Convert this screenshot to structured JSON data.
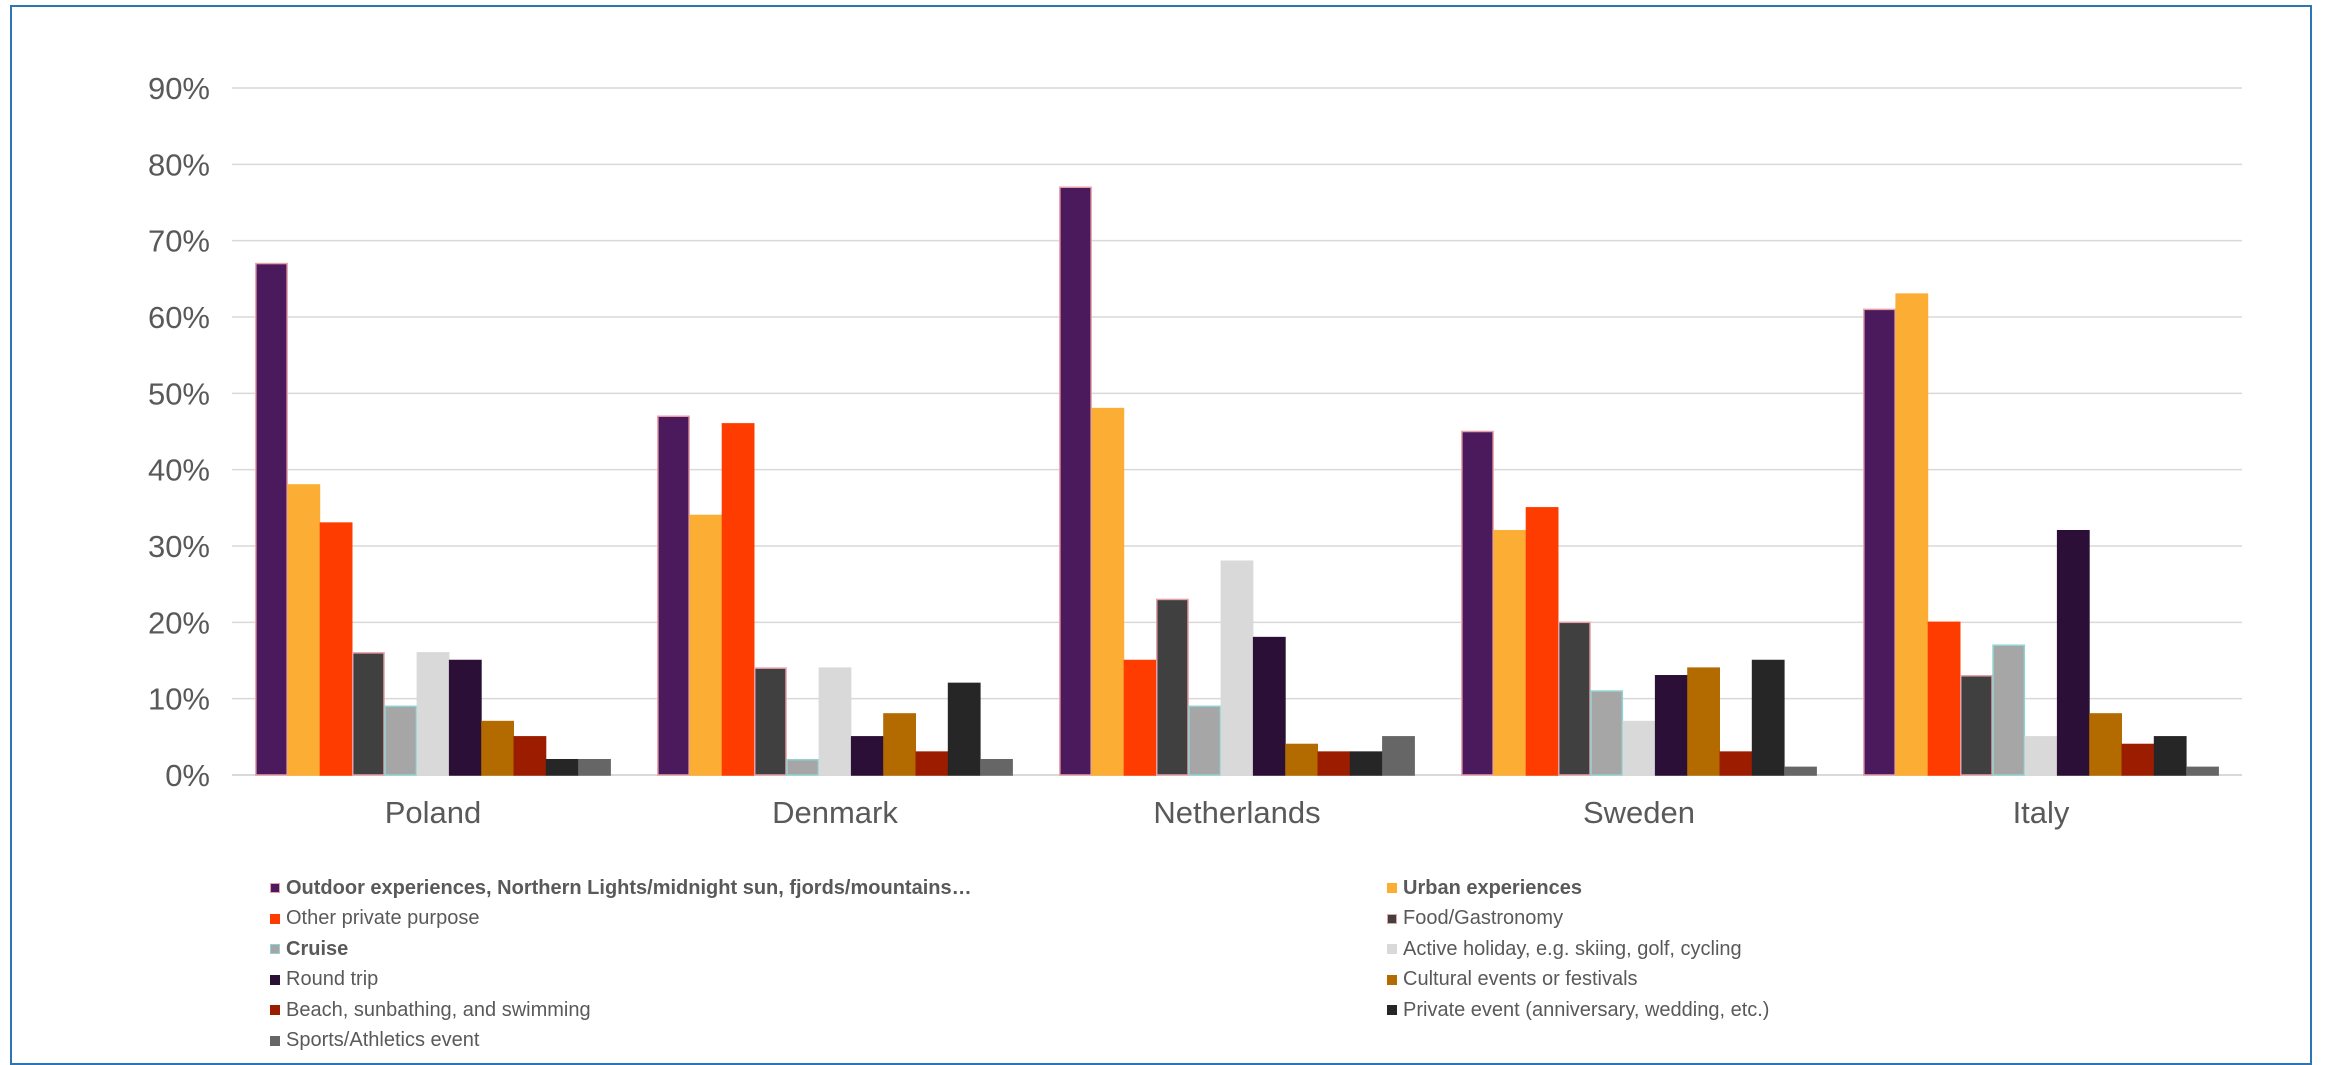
{
  "chart_data": {
    "type": "bar",
    "categories": [
      "Poland",
      "Denmark",
      "Netherlands",
      "Sweden",
      "Italy"
    ],
    "ylim": [
      0,
      90
    ],
    "y_ticks": [
      "0%",
      "10%",
      "20%",
      "30%",
      "40%",
      "50%",
      "60%",
      "70%",
      "80%",
      "90%"
    ],
    "grid": true,
    "legend_position": "bottom",
    "series": [
      {
        "name": "Outdoor experiences, Northern Lights/midnight sun, fjords/mountains…",
        "color": "#4a1a5c",
        "outline": "#e8a0a8",
        "bold": true,
        "values": [
          67,
          47,
          77,
          45,
          61
        ]
      },
      {
        "name": "Urban experiences",
        "color": "#fbad34",
        "outline": "#fbad34",
        "bold": true,
        "values": [
          38,
          34,
          48,
          32,
          63
        ]
      },
      {
        "name": "Other private purpose",
        "color": "#ff3c00",
        "outline": "#ff3c00",
        "bold": false,
        "values": [
          33,
          46,
          15,
          35,
          20
        ]
      },
      {
        "name": "Food/Gastronomy",
        "color": "#404040",
        "outline": "#e8a0a8",
        "bold": false,
        "values": [
          16,
          14,
          23,
          20,
          13
        ]
      },
      {
        "name": "Cruise",
        "color": "#a6a6a6",
        "outline": "#8fd4d4",
        "bold": true,
        "values": [
          9,
          2,
          9,
          11,
          17
        ]
      },
      {
        "name": "Active holiday, e.g. skiing, golf, cycling",
        "color": "#d9d9d9",
        "outline": "#d9d9d9",
        "bold": false,
        "values": [
          16,
          14,
          28,
          7,
          5
        ]
      },
      {
        "name": "Round trip",
        "color": "#2b0f36",
        "outline": "#2b0f36",
        "bold": false,
        "values": [
          15,
          5,
          18,
          13,
          32
        ]
      },
      {
        "name": "Cultural events or festivals",
        "color": "#b36b00",
        "outline": "#b36b00",
        "bold": false,
        "values": [
          7,
          8,
          4,
          14,
          8
        ]
      },
      {
        "name": "Beach, sunbathing, and swimming",
        "color": "#9c1c00",
        "outline": "#9c1c00",
        "bold": false,
        "values": [
          5,
          3,
          3,
          3,
          4
        ]
      },
      {
        "name": "Private event (anniversary, wedding, etc.)",
        "color": "#262626",
        "outline": "#262626",
        "bold": false,
        "values": [
          2,
          12,
          3,
          15,
          5
        ]
      },
      {
        "name": "Sports/Athletics event",
        "color": "#666666",
        "outline": "#666666",
        "bold": false,
        "values": [
          2,
          2,
          5,
          1,
          1
        ]
      }
    ]
  }
}
